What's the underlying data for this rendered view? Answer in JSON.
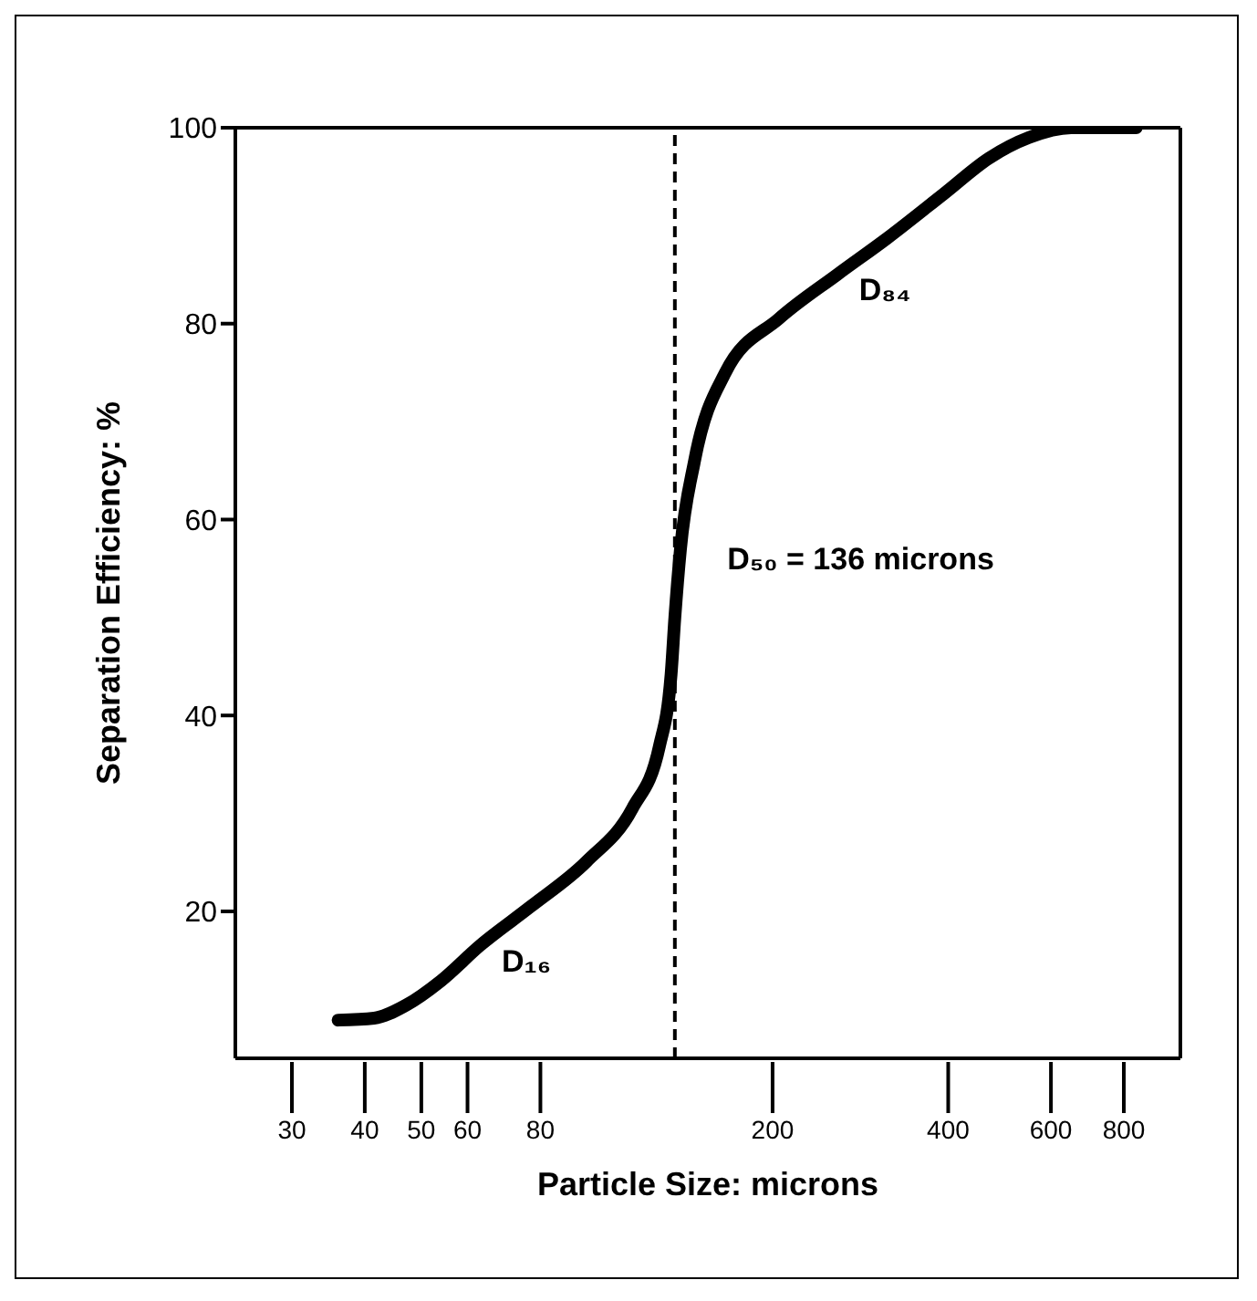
{
  "chart_data": {
    "type": "line",
    "xlabel": "Particle Size: microns",
    "ylabel": "Separation Efficiency: %",
    "log": "x",
    "grid": false,
    "legend": false,
    "marker": "none",
    "line_style": "solid",
    "x": [
      36,
      41.5,
      47,
      54,
      63,
      77,
      96,
      115,
      128,
      134,
      136,
      139,
      147,
      166,
      205,
      258,
      314,
      394,
      470,
      550,
      650,
      840
    ],
    "series": [
      {
        "color": "#000000",
        "values": [
          8.9,
          9.1,
          10.4,
          12.9,
          16.5,
          20.5,
          25.1,
          30.5,
          36.9,
          44.2,
          50,
          56.9,
          66,
          75,
          80.5,
          85,
          88.7,
          93.3,
          96.9,
          99,
          100,
          100
        ]
      }
    ],
    "xlim": [
      24,
      1000
    ],
    "ylim": [
      5,
      100
    ],
    "xticks": [
      30,
      40,
      50,
      60,
      80,
      200,
      400,
      600,
      800
    ],
    "yticks": [
      20,
      40,
      60,
      80,
      100
    ],
    "ref_lines": [
      {
        "axis": "x",
        "value": 136,
        "label": "D₅₀ = 136 microns",
        "color": "#000000",
        "line_style": "dashed"
      }
    ],
    "annotations": [
      {
        "text": "D₁₆",
        "x": 63,
        "y": 16.5
      },
      {
        "text": "D₈₄",
        "x": 258,
        "y": 85
      }
    ]
  }
}
